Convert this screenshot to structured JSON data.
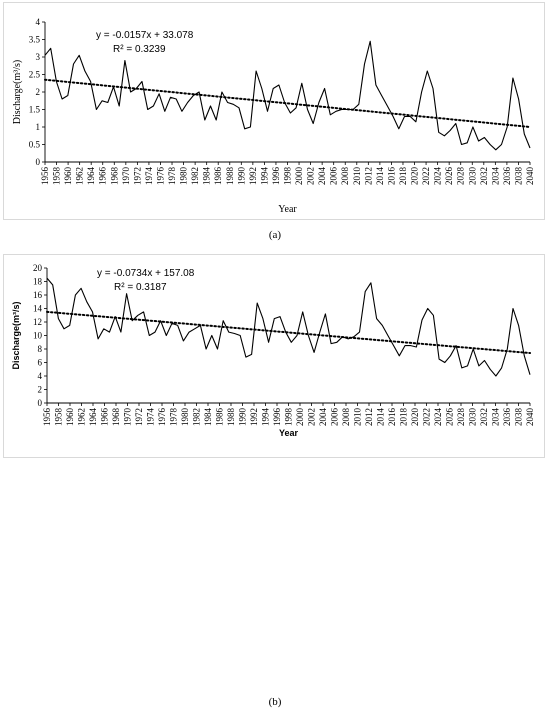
{
  "captions": {
    "a": "(a)",
    "b": "(b)"
  },
  "chart_data": [
    {
      "type": "line",
      "panel": "a",
      "xlabel": "Year",
      "ylabel": "Discharge(m³/s)",
      "ylim": [
        0,
        4
      ],
      "yticks": [
        "0",
        "0.5",
        "1",
        "1.5",
        "2",
        "2.5",
        "3",
        "3.5",
        "4"
      ],
      "xticks": [
        "1956",
        "1958",
        "1960",
        "1962",
        "1964",
        "1966",
        "1968",
        "1970",
        "1972",
        "1974",
        "1976",
        "1978",
        "1980",
        "1982",
        "1984",
        "1986",
        "1988",
        "1990",
        "1992",
        "1994",
        "1996",
        "1998",
        "2000",
        "2002",
        "2004",
        "2006",
        "2008",
        "2010",
        "2012",
        "2014",
        "2016",
        "2018",
        "2020",
        "2022",
        "2024",
        "2026",
        "2028",
        "2030",
        "2032",
        "2034",
        "2036",
        "2038",
        "2040"
      ],
      "x_start": 1956,
      "x_end": 2040,
      "trendline": {
        "equation": "y = -0.0157x + 33.078",
        "r2": "R² = 0.3239",
        "start": 2.35,
        "end": 1.0,
        "style": "dotted"
      },
      "series": [
        {
          "values": [
            3.05,
            3.25,
            2.3,
            1.8,
            1.9,
            2.8,
            3.05,
            2.6,
            2.3,
            1.5,
            1.75,
            1.7,
            2.15,
            1.6,
            2.9,
            2.0,
            2.1,
            2.3,
            1.5,
            1.6,
            1.95,
            1.45,
            1.85,
            1.8,
            1.45,
            1.7,
            1.9,
            2.0,
            1.2,
            1.6,
            1.2,
            2.0,
            1.7,
            1.65,
            1.55,
            0.95,
            1.0,
            2.6,
            2.1,
            1.45,
            2.1,
            2.2,
            1.7,
            1.4,
            1.55,
            2.25,
            1.5,
            1.1,
            1.7,
            2.1,
            1.35,
            1.45,
            1.5,
            1.5,
            1.5,
            1.65,
            2.8,
            3.45,
            2.2,
            1.9,
            1.6,
            1.3,
            0.95,
            1.3,
            1.3,
            1.15,
            2.0,
            2.6,
            2.1,
            0.85,
            0.75,
            0.9,
            1.1,
            0.5,
            0.55,
            1.0,
            0.6,
            0.7,
            0.5,
            0.35,
            0.5,
            1.0,
            2.4,
            1.8,
            0.8,
            0.4
          ]
        }
      ]
    },
    {
      "type": "line",
      "panel": "b",
      "xlabel": "Year",
      "ylabel": "Discharge(m³/s)",
      "ylim": [
        0,
        20
      ],
      "yticks": [
        "0",
        "2",
        "4",
        "6",
        "8",
        "10",
        "12",
        "14",
        "16",
        "18",
        "20"
      ],
      "xticks": [
        "1956",
        "1958",
        "1960",
        "1962",
        "1964",
        "1966",
        "1968",
        "1970",
        "1972",
        "1974",
        "1976",
        "1978",
        "1980",
        "1982",
        "1984",
        "1986",
        "1988",
        "1990",
        "1992",
        "1994",
        "1996",
        "1998",
        "2000",
        "2002",
        "2004",
        "2006",
        "2008",
        "2010",
        "2012",
        "2014",
        "2016",
        "2018",
        "2020",
        "2022",
        "2024",
        "2026",
        "2028",
        "2030",
        "2032",
        "2034",
        "2036",
        "2038",
        "2040"
      ],
      "x_start": 1956,
      "x_end": 2040,
      "trendline": {
        "equation": "y = -0.0734x + 157.08",
        "r2": "R² = 0.3187",
        "start": 13.5,
        "end": 7.4,
        "style": "dotted"
      },
      "series": [
        {
          "values": [
            18.5,
            17.5,
            12.5,
            11.0,
            11.5,
            16.0,
            17.0,
            15.0,
            13.5,
            9.5,
            11.0,
            10.5,
            12.8,
            10.5,
            16.2,
            12.2,
            13.0,
            13.5,
            10.0,
            10.5,
            12.2,
            10.0,
            11.8,
            11.5,
            9.2,
            10.5,
            11.0,
            11.5,
            8.0,
            10.0,
            8.0,
            12.2,
            10.5,
            10.3,
            10.0,
            6.8,
            7.2,
            14.8,
            12.5,
            9.0,
            12.5,
            12.8,
            10.5,
            9.0,
            10.0,
            13.5,
            10.0,
            7.5,
            10.5,
            13.2,
            8.8,
            9.0,
            9.8,
            9.5,
            9.8,
            10.5,
            16.5,
            17.8,
            12.5,
            11.5,
            10.0,
            8.5,
            7.0,
            8.5,
            8.5,
            8.3,
            12.3,
            14.0,
            13.0,
            6.5,
            6.0,
            7.0,
            8.5,
            5.2,
            5.5,
            8.0,
            5.5,
            6.3,
            5.0,
            4.0,
            5.2,
            8.0,
            14.0,
            11.5,
            7.0,
            4.2
          ]
        }
      ]
    }
  ]
}
